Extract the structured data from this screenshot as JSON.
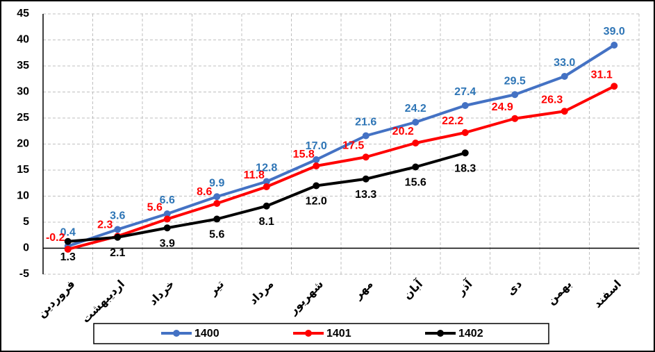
{
  "chart_data": {
    "type": "line",
    "categories": [
      "فروردین",
      "اردیبهشت",
      "خرداد",
      "تیر",
      "مرداد",
      "شهریور",
      "مهر",
      "آبان",
      "آذر",
      "دی",
      "بهمن",
      "اسفند"
    ],
    "series": [
      {
        "name": "1400",
        "color": "#4472c4",
        "label_color": "#2e75b6",
        "values": [
          0.4,
          3.6,
          6.6,
          9.9,
          12.8,
          17.0,
          21.6,
          24.2,
          27.4,
          29.5,
          33.0,
          39.0
        ],
        "value_labels": [
          "0.4",
          "3.6",
          "6.6",
          "9.9",
          "12.8",
          "17.0",
          "21.6",
          "24.2",
          "27.4",
          "29.5",
          "33.0",
          "39.0"
        ]
      },
      {
        "name": "1401",
        "color": "#ff0000",
        "label_color": "#ff0000",
        "values": [
          -0.2,
          2.3,
          5.6,
          8.6,
          11.8,
          15.8,
          17.5,
          20.2,
          22.2,
          24.9,
          26.3,
          31.1
        ],
        "value_labels": [
          "-0.2",
          "2.3",
          "5.6",
          "8.6",
          "11.8",
          "15.8",
          "17.5",
          "20.2",
          "22.2",
          "24.9",
          "26.3",
          "31.1"
        ]
      },
      {
        "name": "1402",
        "color": "#000000",
        "label_color": "#000000",
        "values": [
          1.3,
          2.1,
          3.9,
          5.6,
          8.1,
          12.0,
          13.3,
          15.6,
          18.3,
          null,
          null,
          null
        ],
        "value_labels": [
          "1.3",
          "2.1",
          "3.9",
          "5.6",
          "8.1",
          "12.0",
          "13.3",
          "15.6",
          "18.3",
          null,
          null,
          null
        ]
      }
    ],
    "ylim": [
      -5,
      45
    ],
    "yticks": [
      -5,
      0,
      5,
      10,
      15,
      20,
      25,
      30,
      35,
      40,
      45
    ],
    "grid": true,
    "legend": "bottom"
  }
}
